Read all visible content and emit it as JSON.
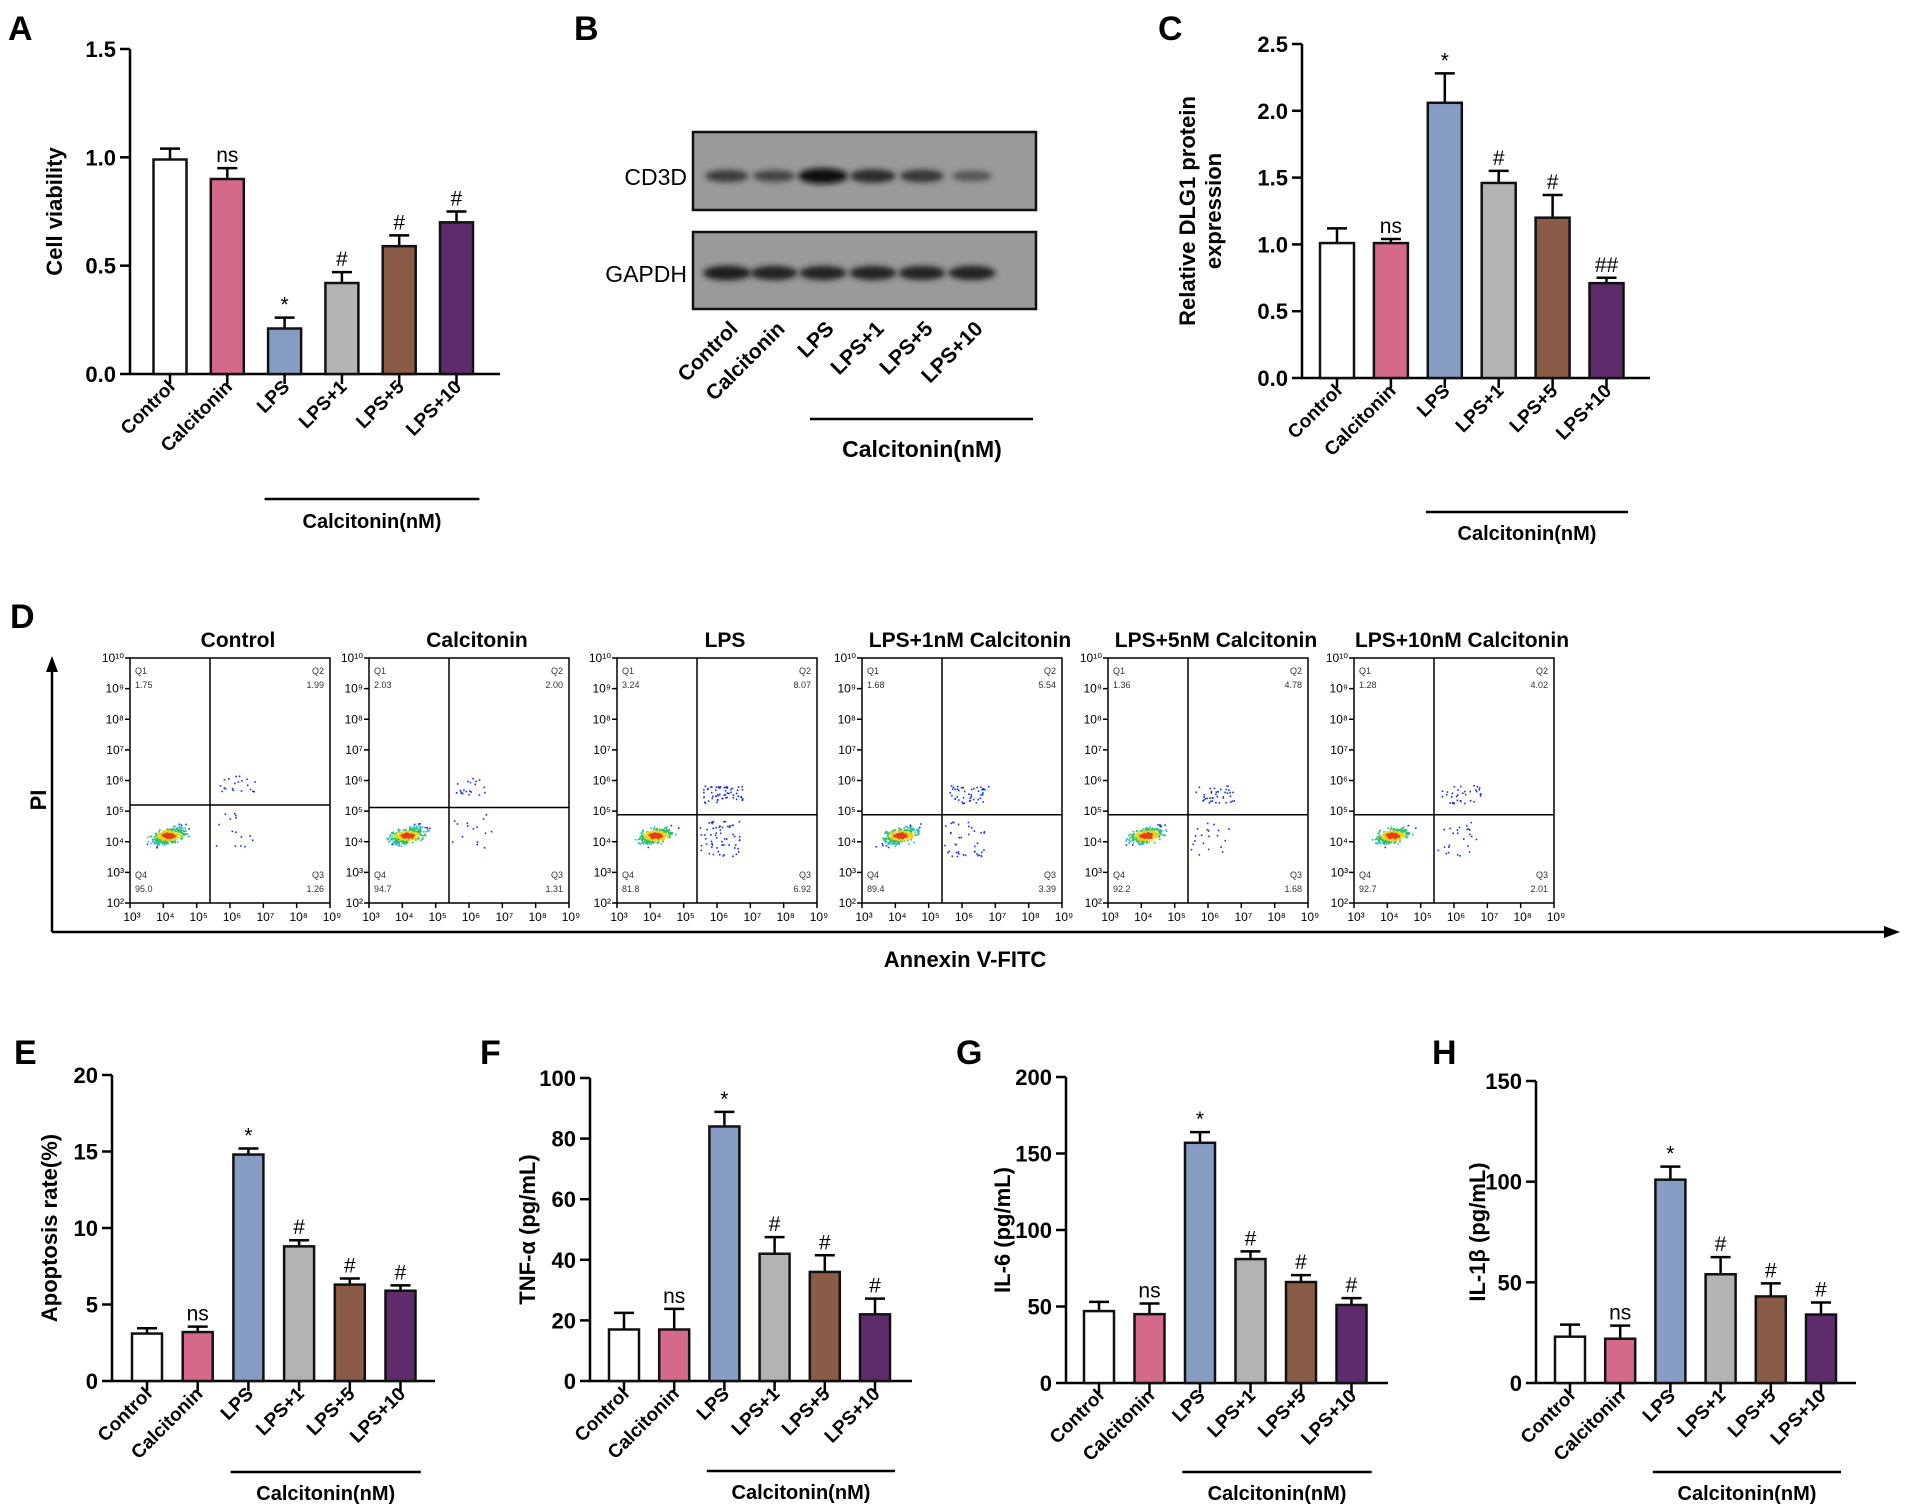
{
  "figure": {
    "categories": [
      "Control",
      "Calcitonin",
      "LPS",
      "LPS+1",
      "LPS+5",
      "LPS+10"
    ],
    "group_label": "Calcitonin(nM)",
    "bar_colors": [
      "#ffffff",
      "#d4698a",
      "#889dc4",
      "#b3b3b3",
      "#8a5c48",
      "#5f2c6b"
    ]
  },
  "chart_data": [
    {
      "id": "A",
      "panel": "A",
      "type": "bar",
      "title": "",
      "xlabel": "",
      "ylabel": "Cell viability",
      "ylim": [
        0,
        1.5
      ],
      "yticks": [
        "0.0",
        "0.5",
        "1.0",
        "1.5"
      ],
      "ytick_values": [
        0,
        0.5,
        1.0,
        1.5
      ],
      "categories": [
        "Control",
        "Calcitonin",
        "LPS",
        "LPS+1",
        "LPS+5",
        "LPS+10"
      ],
      "values": [
        0.99,
        0.9,
        0.21,
        0.42,
        0.59,
        0.7
      ],
      "errors": [
        0.05,
        0.05,
        0.05,
        0.05,
        0.05,
        0.05
      ],
      "annotations": [
        "",
        "ns",
        "*",
        "#",
        "#",
        "#"
      ],
      "group_label": "Calcitonin(nM)"
    },
    {
      "id": "C",
      "panel": "C",
      "type": "bar",
      "title": "",
      "xlabel": "",
      "ylabel": "Relative DLG1 protein\nexpression",
      "ylabel_lines": [
        "Relative DLG1 protein",
        "expression"
      ],
      "ylim": [
        0,
        2.5
      ],
      "yticks": [
        "0.0",
        "0.5",
        "1.0",
        "1.5",
        "2.0",
        "2.5"
      ],
      "ytick_values": [
        0,
        0.5,
        1.0,
        1.5,
        2.0,
        2.5
      ],
      "categories": [
        "Control",
        "Calcitonin",
        "LPS",
        "LPS+1",
        "LPS+5",
        "LPS+10"
      ],
      "values": [
        1.01,
        1.01,
        2.06,
        1.46,
        1.2,
        0.71
      ],
      "errors": [
        0.11,
        0.03,
        0.22,
        0.09,
        0.17,
        0.04
      ],
      "annotations": [
        "",
        "ns",
        "*",
        "#",
        "#",
        "##"
      ],
      "group_label": "Calcitonin(nM)"
    },
    {
      "id": "E",
      "panel": "E",
      "type": "bar",
      "title": "",
      "xlabel": "",
      "ylabel": "Apoptosis rate(%)",
      "ylim": [
        0,
        20
      ],
      "yticks": [
        "0",
        "5",
        "10",
        "15",
        "20"
      ],
      "ytick_values": [
        0,
        5,
        10,
        15,
        20
      ],
      "categories": [
        "Control",
        "Calcitonin",
        "LPS",
        "LPS+1",
        "LPS+5",
        "LPS+10"
      ],
      "values": [
        3.1,
        3.2,
        14.8,
        8.8,
        6.3,
        5.9
      ],
      "errors": [
        0.35,
        0.35,
        0.4,
        0.4,
        0.4,
        0.35
      ],
      "annotations": [
        "",
        "ns",
        "*",
        "#",
        "#",
        "#"
      ],
      "group_label": "Calcitonin(nM)"
    },
    {
      "id": "F",
      "panel": "F",
      "type": "bar",
      "title": "",
      "xlabel": "",
      "ylabel": "TNF-α (pg/mL)",
      "ylim": [
        0,
        100
      ],
      "yticks": [
        "0",
        "20",
        "40",
        "60",
        "80",
        "100"
      ],
      "ytick_values": [
        0,
        20,
        40,
        60,
        80,
        100
      ],
      "categories": [
        "Control",
        "Calcitonin",
        "LPS",
        "LPS+1",
        "LPS+5",
        "LPS+10"
      ],
      "values": [
        17,
        17,
        84,
        42,
        36,
        22
      ],
      "errors": [
        5.5,
        6.8,
        4.8,
        5.5,
        5.5,
        5.2
      ],
      "annotations": [
        "",
        "ns",
        "*",
        "#",
        "#",
        "#"
      ],
      "group_label": "Calcitonin(nM)"
    },
    {
      "id": "G",
      "panel": "G",
      "type": "bar",
      "title": "",
      "xlabel": "",
      "ylabel": "IL-6 (pg/mL)",
      "ylim": [
        0,
        200
      ],
      "yticks": [
        "0",
        "50",
        "100",
        "150",
        "200"
      ],
      "ytick_values": [
        0,
        50,
        100,
        150,
        200
      ],
      "categories": [
        "Control",
        "Calcitonin",
        "LPS",
        "LPS+1",
        "LPS+5",
        "LPS+10"
      ],
      "values": [
        47,
        45,
        157,
        81,
        66,
        51
      ],
      "errors": [
        6,
        7,
        7,
        5,
        4.5,
        4.5
      ],
      "annotations": [
        "",
        "ns",
        "*",
        "#",
        "#",
        "#"
      ],
      "group_label": "Calcitonin(nM)"
    },
    {
      "id": "H",
      "panel": "H",
      "type": "bar",
      "title": "",
      "xlabel": "",
      "ylabel": "IL-1β (pg/mL)",
      "ylim": [
        0,
        150
      ],
      "yticks": [
        "0",
        "50",
        "100",
        "150"
      ],
      "ytick_values": [
        0,
        50,
        100,
        150
      ],
      "categories": [
        "Control",
        "Calcitonin",
        "LPS",
        "LPS+1",
        "LPS+5",
        "LPS+10"
      ],
      "values": [
        23,
        22,
        101,
        54,
        43,
        34
      ],
      "errors": [
        6,
        6.5,
        6.5,
        8.5,
        6.5,
        6
      ],
      "annotations": [
        "",
        "ns",
        "*",
        "#",
        "#",
        "#"
      ],
      "group_label": "Calcitonin(nM)"
    }
  ],
  "western_blot": {
    "panel": "B",
    "rows": [
      {
        "label": "CD3D",
        "band_intensity": [
          0.55,
          0.45,
          1.0,
          0.7,
          0.6,
          0.3
        ]
      },
      {
        "label": "GAPDH",
        "band_intensity": [
          0.85,
          0.8,
          0.8,
          0.8,
          0.78,
          0.82
        ]
      }
    ],
    "lanes": [
      "Control",
      "Calcitonin",
      "LPS",
      "LPS+1",
      "LPS+5",
      "LPS+10"
    ],
    "group_label": "Calcitonin(nM)"
  },
  "flow_cytometry": {
    "panel": "D",
    "x_axis_label": "Annexin V-FITC",
    "y_axis_label": "PI",
    "x_ticks": [
      "10³",
      "10⁴",
      "10⁵",
      "10⁶",
      "10⁷",
      "10⁸",
      "10⁹"
    ],
    "y_ticks": [
      "10²",
      "10³",
      "10⁴",
      "10⁵",
      "10⁶",
      "10⁷",
      "10⁸",
      "10⁹",
      "10¹⁰"
    ],
    "quadrant_names": [
      "Q1",
      "Q2",
      "Q3",
      "Q4"
    ],
    "plots": [
      {
        "title": "Control",
        "Q1": "1.75",
        "Q2": "1.99",
        "Q3": "1.26",
        "Q4": "95.0"
      },
      {
        "title": "Calcitonin",
        "Q1": "2.03",
        "Q2": "2.00",
        "Q3": "1.31",
        "Q4": "94.7"
      },
      {
        "title": "LPS",
        "Q1": "3.24",
        "Q2": "8.07",
        "Q3": "6.92",
        "Q4": "81.8"
      },
      {
        "title": "LPS+1nM Calcitonin",
        "Q1": "1.68",
        "Q2": "5.54",
        "Q3": "3.39",
        "Q4": "89.4"
      },
      {
        "title": "LPS+5nM Calcitonin",
        "Q1": "1.36",
        "Q2": "4.78",
        "Q3": "1.68",
        "Q4": "92.2"
      },
      {
        "title": "LPS+10nM Calcitonin",
        "Q1": "1.28",
        "Q2": "4.02",
        "Q3": "2.01",
        "Q4": "92.7"
      }
    ]
  }
}
